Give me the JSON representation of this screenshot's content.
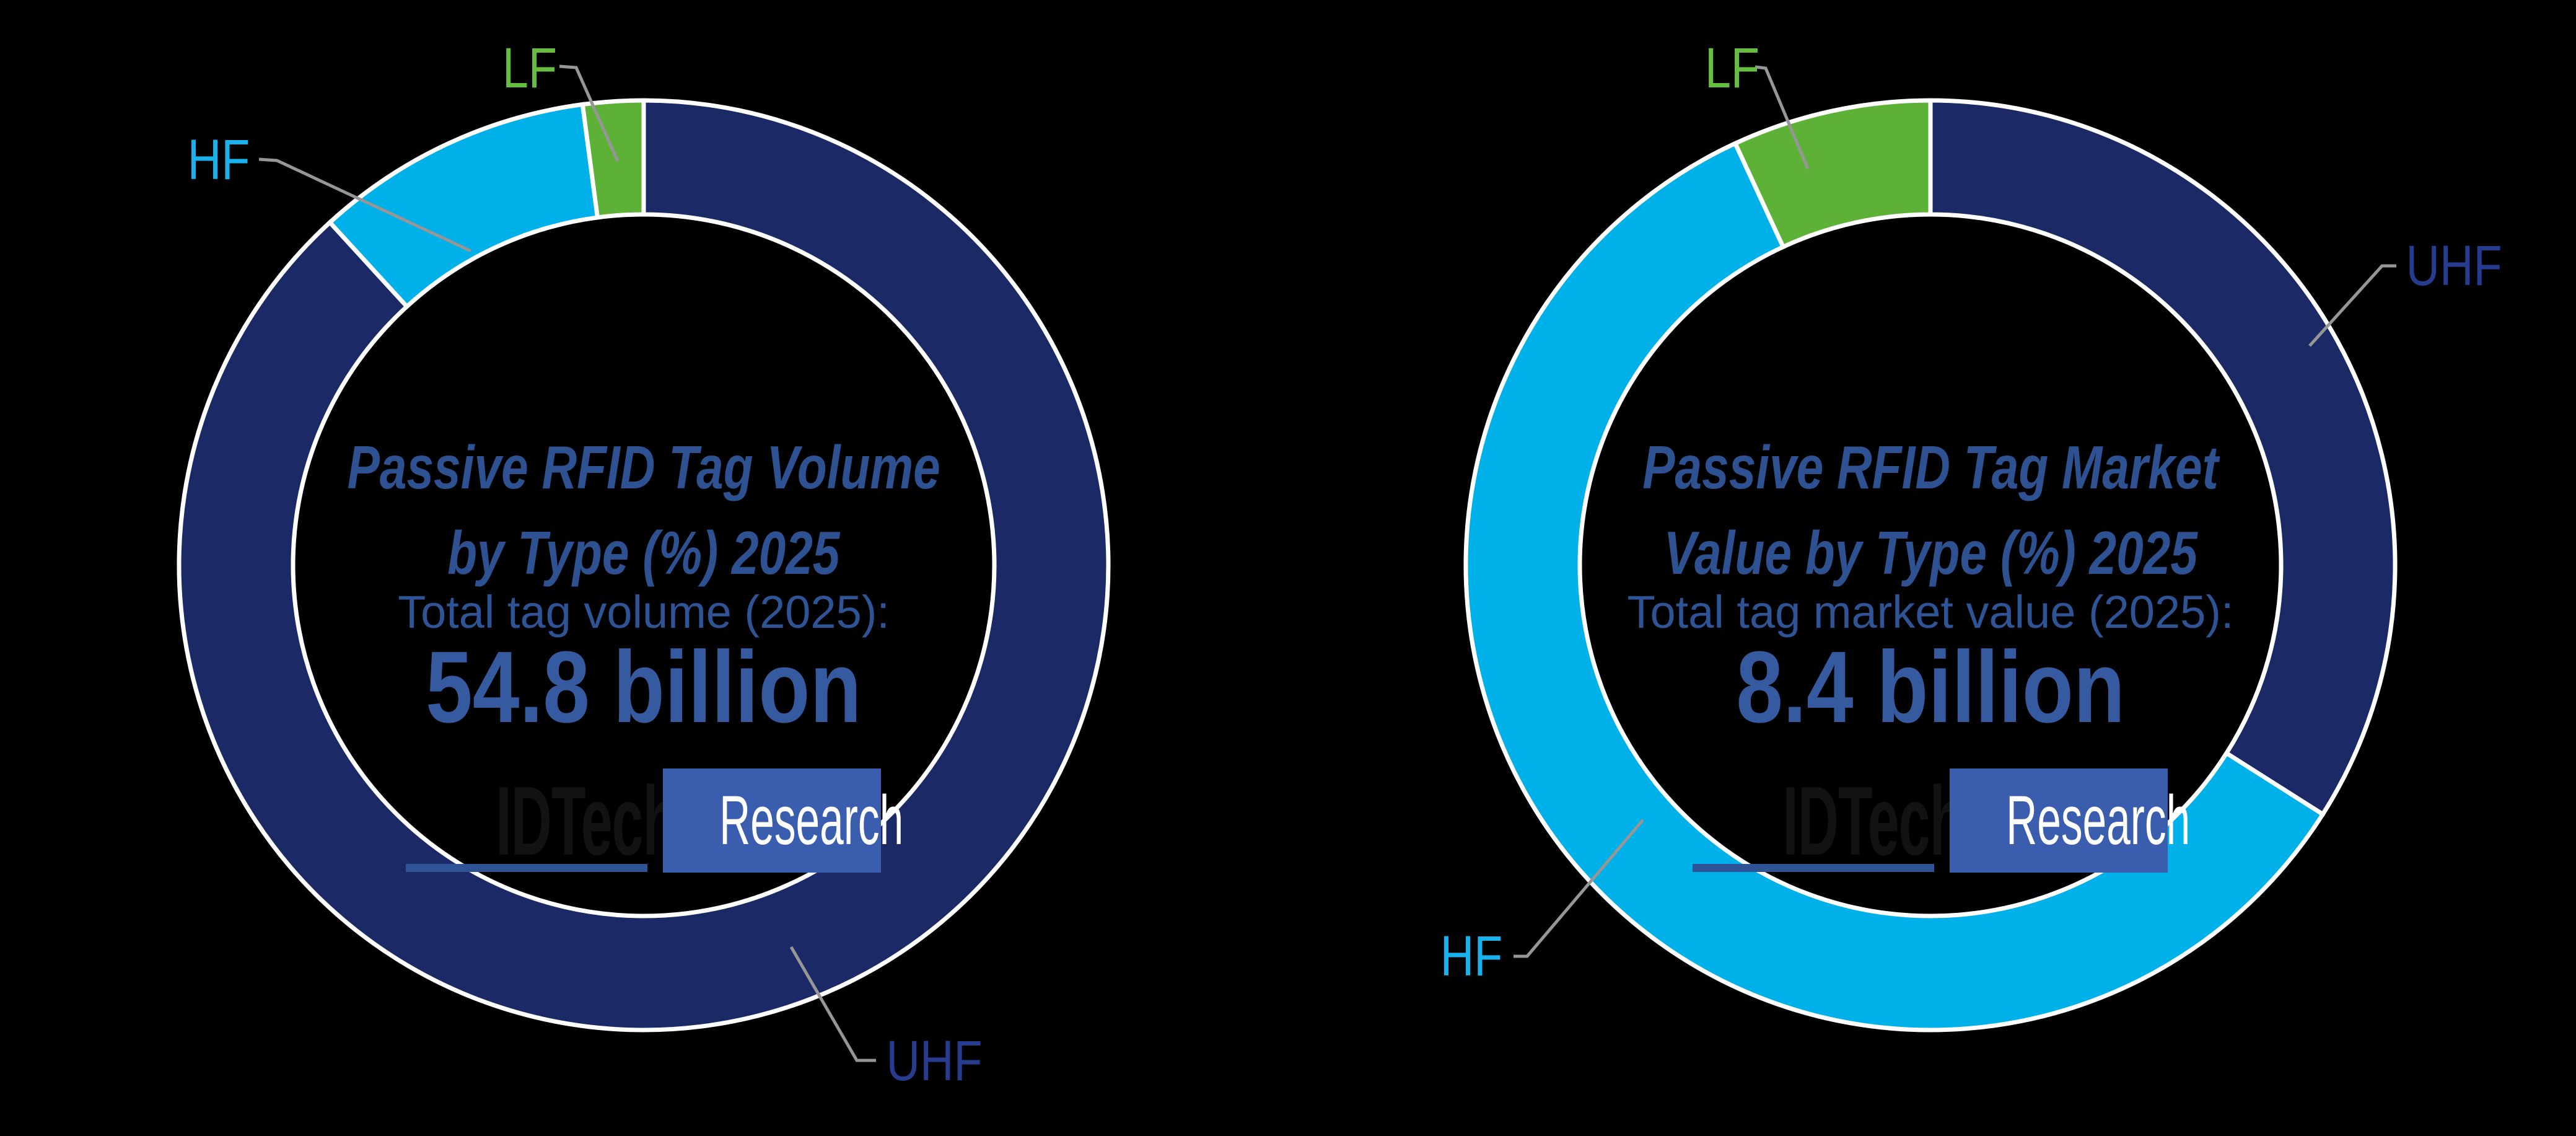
{
  "background": "#000000",
  "palette": {
    "title_text": "#2e5291",
    "subtitle_text": "#2f5496",
    "value_text": "#355aa0",
    "leader_line": "#969696",
    "slice_border": "#ffffff"
  },
  "logo": {
    "brand": "IDTechEx",
    "suffix": "Research",
    "brand_color": "#121212",
    "underline_color": "#2f5496",
    "box_color": "#3a5dae",
    "suffix_color": "#ffffff"
  },
  "chart_data": [
    {
      "type": "pie",
      "subtype": "donut",
      "title": "Passive RFID Tag Volume by Type (%) 2025",
      "title_lines": [
        "Passive RFID Tag Volume",
        "by Type (%) 2025"
      ],
      "subtitle": "Total tag volume (2025):",
      "total_value": "54.8 billion",
      "categories": [
        "UHF",
        "HF",
        "LF"
      ],
      "values": [
        88.2,
        9.7,
        2.1
      ],
      "slice_colors": [
        "#1b2a66",
        "#00b0e8",
        "#5cb136"
      ],
      "label_colors": [
        "#283c8f",
        "#1ab2ec",
        "#67bd41"
      ],
      "start_angle_deg": 0,
      "direction": "clockwise",
      "legend_position": "callouts"
    },
    {
      "type": "pie",
      "subtype": "donut",
      "title": "Passive RFID Tag Market Value by Type (%) 2025",
      "title_lines": [
        "Passive RFID Tag Market",
        "Value by Type (%) 2025"
      ],
      "subtitle": "Total tag market value (2025):",
      "total_value": "8.4 billion",
      "categories": [
        "UHF",
        "HF",
        "LF"
      ],
      "values": [
        34.0,
        59.1,
        6.9
      ],
      "slice_colors": [
        "#1b2a66",
        "#00b0e8",
        "#5cb136"
      ],
      "label_colors": [
        "#283c8f",
        "#1ab2ec",
        "#67bd41"
      ],
      "start_angle_deg": 0,
      "direction": "clockwise",
      "legend_position": "callouts"
    }
  ]
}
